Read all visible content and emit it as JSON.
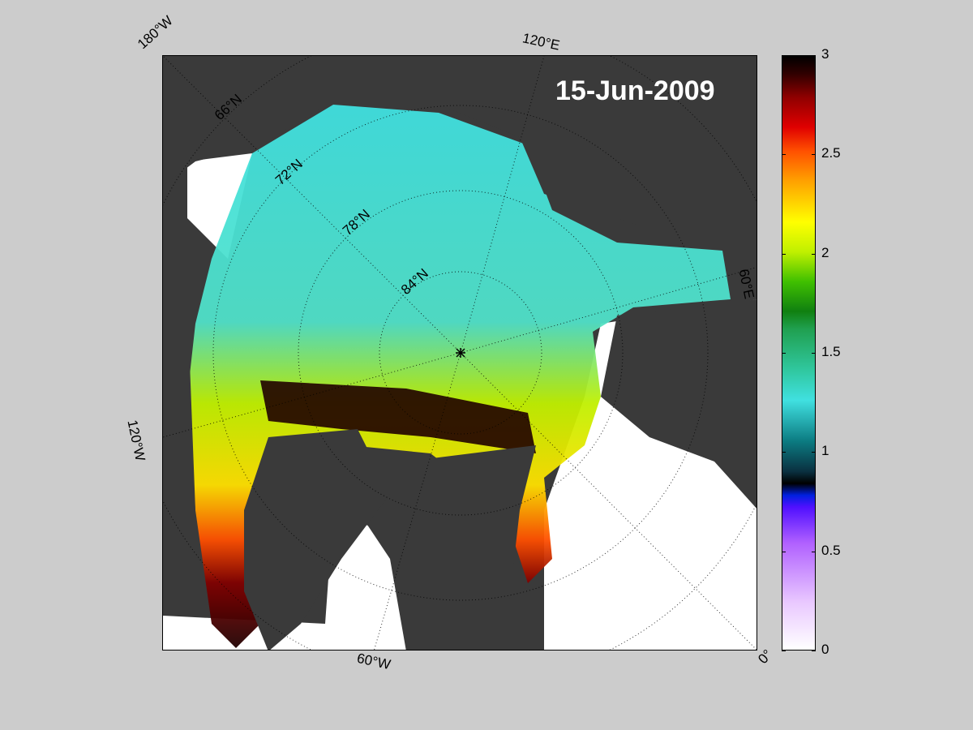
{
  "map": {
    "date": "15-Jun-2009",
    "pole_marker": "north-pole-asterisk",
    "lat_labels": [
      "66°N",
      "72°N",
      "78°N",
      "84°N"
    ],
    "lon_labels": [
      "180°W",
      "120°E",
      "60°E",
      "0°",
      "60°W",
      "120°W"
    ]
  },
  "colorbar": {
    "min": 0,
    "max": 3,
    "ticks": [
      "0",
      "0.5",
      "1",
      "1.5",
      "2",
      "2.5",
      "3"
    ],
    "colors": {
      "land": "#3a3a3a",
      "open_water": "#ffffff",
      "background": "#cccccc"
    }
  }
}
